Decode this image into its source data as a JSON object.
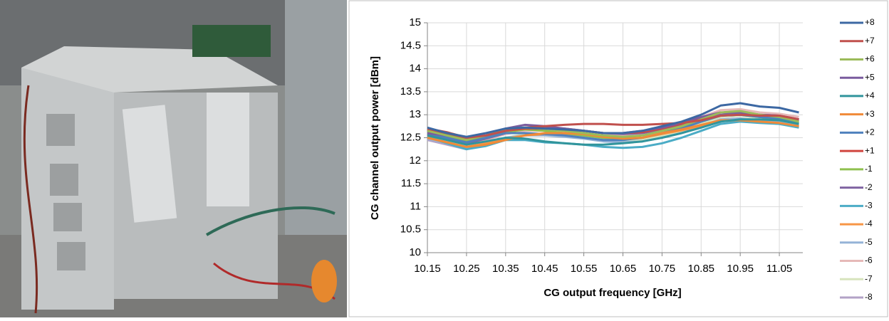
{
  "chart_data": {
    "type": "line",
    "x_label": "CG output frequency [GHz]",
    "y_label": "CG channel output power [dBm]",
    "x": [
      10.15,
      10.2,
      10.25,
      10.3,
      10.35,
      10.4,
      10.45,
      10.5,
      10.55,
      10.6,
      10.65,
      10.7,
      10.75,
      10.8,
      10.85,
      10.9,
      10.95,
      11.0,
      11.05,
      11.1
    ],
    "xlim": [
      10.15,
      11.11
    ],
    "xticks": [
      10.15,
      10.25,
      10.35,
      10.45,
      10.55,
      10.65,
      10.75,
      10.85,
      10.95,
      11.05
    ],
    "ylim": [
      10,
      15
    ],
    "yticks": [
      10,
      10.5,
      11,
      11.5,
      12,
      12.5,
      13,
      13.5,
      14,
      14.5,
      15
    ],
    "grid": true,
    "legend": "right",
    "series": [
      {
        "name": "+8",
        "color": "#3c68a3",
        "values": [
          12.72,
          12.6,
          12.52,
          12.6,
          12.7,
          12.72,
          12.7,
          12.68,
          12.65,
          12.6,
          12.6,
          12.65,
          12.75,
          12.85,
          13.0,
          13.2,
          13.25,
          13.18,
          13.15,
          13.05
        ]
      },
      {
        "name": "+7",
        "color": "#c0504d",
        "values": [
          12.7,
          12.62,
          12.5,
          12.55,
          12.65,
          12.72,
          12.75,
          12.78,
          12.8,
          12.8,
          12.78,
          12.78,
          12.8,
          12.82,
          12.88,
          12.98,
          13.0,
          12.98,
          12.98,
          12.9
        ]
      },
      {
        "name": "+6",
        "color": "#9bbb59",
        "values": [
          12.65,
          12.55,
          12.45,
          12.55,
          12.68,
          12.72,
          12.7,
          12.65,
          12.6,
          12.55,
          12.52,
          12.55,
          12.65,
          12.75,
          12.9,
          13.05,
          13.08,
          13.0,
          12.95,
          12.85
        ]
      },
      {
        "name": "+5",
        "color": "#7a5c9e",
        "values": [
          12.6,
          12.55,
          12.45,
          12.55,
          12.7,
          12.78,
          12.75,
          12.7,
          12.65,
          12.6,
          12.6,
          12.65,
          12.72,
          12.82,
          12.95,
          13.05,
          13.05,
          13.0,
          12.98,
          12.9
        ]
      },
      {
        "name": "+4",
        "color": "#31959c",
        "values": [
          12.55,
          12.45,
          12.35,
          12.42,
          12.5,
          12.48,
          12.42,
          12.38,
          12.35,
          12.35,
          12.38,
          12.42,
          12.5,
          12.6,
          12.72,
          12.85,
          12.9,
          12.9,
          12.88,
          12.8
        ]
      },
      {
        "name": "+3",
        "color": "#f08a38",
        "values": [
          12.5,
          12.4,
          12.3,
          12.35,
          12.45,
          12.55,
          12.6,
          12.6,
          12.58,
          12.52,
          12.48,
          12.5,
          12.6,
          12.68,
          12.78,
          12.88,
          12.88,
          12.85,
          12.82,
          12.75
        ]
      },
      {
        "name": "+2",
        "color": "#4f81bd",
        "values": [
          12.6,
          12.5,
          12.4,
          12.5,
          12.6,
          12.6,
          12.58,
          12.55,
          12.5,
          12.45,
          12.45,
          12.5,
          12.6,
          12.7,
          12.85,
          12.98,
          13.0,
          12.95,
          12.92,
          12.85
        ]
      },
      {
        "name": "+1",
        "color": "#d0453f",
        "values": [
          12.68,
          12.58,
          12.48,
          12.55,
          12.65,
          12.7,
          12.7,
          12.68,
          12.65,
          12.6,
          12.6,
          12.62,
          12.7,
          12.8,
          12.92,
          13.05,
          13.05,
          13.0,
          12.98,
          12.9
        ]
      },
      {
        "name": "-1",
        "color": "#8fc04f",
        "values": [
          12.62,
          12.52,
          12.42,
          12.5,
          12.62,
          12.68,
          12.65,
          12.6,
          12.55,
          12.5,
          12.48,
          12.5,
          12.6,
          12.72,
          12.85,
          12.98,
          13.0,
          12.95,
          12.9,
          12.82
        ]
      },
      {
        "name": "-2",
        "color": "#8064a2",
        "values": [
          12.58,
          12.48,
          12.38,
          12.48,
          12.6,
          12.7,
          12.72,
          12.7,
          12.65,
          12.6,
          12.58,
          12.6,
          12.68,
          12.78,
          12.9,
          13.0,
          13.02,
          12.98,
          12.95,
          12.88
        ]
      },
      {
        "name": "-3",
        "color": "#4bacc6",
        "values": [
          12.52,
          12.38,
          12.25,
          12.32,
          12.45,
          12.45,
          12.4,
          12.38,
          12.35,
          12.3,
          12.28,
          12.3,
          12.38,
          12.5,
          12.65,
          12.8,
          12.85,
          12.82,
          12.8,
          12.72
        ]
      },
      {
        "name": "-4",
        "color": "#f79646",
        "values": [
          12.5,
          12.4,
          12.3,
          12.38,
          12.48,
          12.55,
          12.58,
          12.58,
          12.55,
          12.5,
          12.48,
          12.5,
          12.58,
          12.66,
          12.76,
          12.86,
          12.88,
          12.84,
          12.8,
          12.74
        ]
      },
      {
        "name": "-5",
        "color": "#95b3d7",
        "values": [
          12.48,
          12.38,
          12.28,
          12.38,
          12.5,
          12.55,
          12.55,
          12.52,
          12.48,
          12.42,
          12.4,
          12.42,
          12.5,
          12.6,
          12.75,
          12.9,
          12.92,
          12.88,
          12.85,
          12.78
        ]
      },
      {
        "name": "-6",
        "color": "#e6b9b8",
        "values": [
          12.6,
          12.5,
          12.38,
          12.45,
          12.58,
          12.65,
          12.65,
          12.62,
          12.6,
          12.55,
          12.55,
          12.6,
          12.7,
          12.82,
          12.95,
          13.1,
          13.12,
          13.05,
          13.02,
          12.95
        ]
      },
      {
        "name": "-7",
        "color": "#d7e4bd",
        "values": [
          12.55,
          12.42,
          12.3,
          12.38,
          12.5,
          12.58,
          12.58,
          12.55,
          12.5,
          12.45,
          12.42,
          12.45,
          12.55,
          12.65,
          12.8,
          12.95,
          12.98,
          12.92,
          12.9,
          12.82
        ]
      },
      {
        "name": "-8",
        "color": "#b3a2c7",
        "values": [
          12.45,
          12.35,
          12.25,
          12.35,
          12.48,
          12.55,
          12.58,
          12.55,
          12.52,
          12.48,
          12.45,
          12.48,
          12.55,
          12.68,
          12.82,
          12.95,
          12.98,
          12.95,
          12.92,
          12.85
        ]
      }
    ]
  }
}
